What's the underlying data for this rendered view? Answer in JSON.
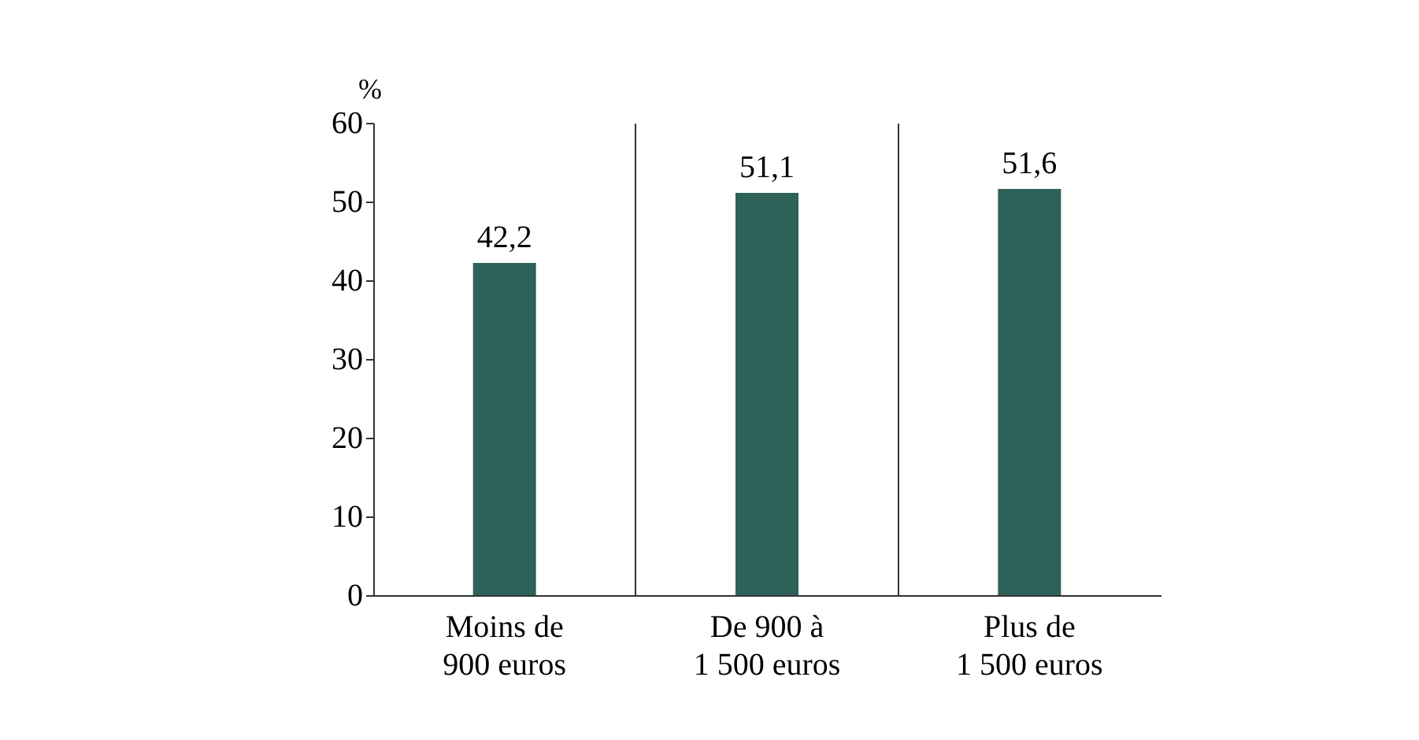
{
  "chart_data": {
    "type": "bar",
    "ylabel": "%",
    "categories": [
      "Moins de\n900 euros",
      "De 900 à\n1 500 euros",
      "Plus de\n1 500 euros"
    ],
    "values": [
      42.2,
      51.1,
      51.6
    ],
    "color": "#2e6158",
    "ylim": [
      0,
      60
    ],
    "yticks": [
      0,
      10,
      20,
      30,
      40,
      50,
      60
    ],
    "value_labels": [
      "42,2",
      "51,1",
      "51,6"
    ],
    "grid": "x"
  }
}
